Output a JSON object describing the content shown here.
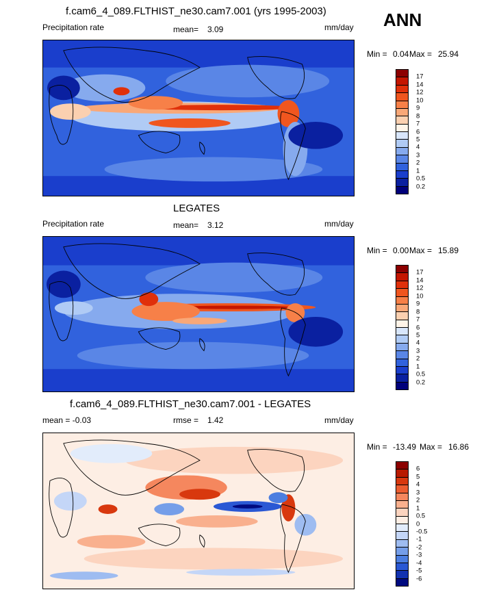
{
  "season": "ANN",
  "panels": [
    {
      "title": "f.cam6_4_089.FLTHIST_ne30.cam7.001 (yrs 1995-2003)",
      "left_label": "Precipitation rate",
      "mid_prefix": "mean=",
      "mid_value": "3.09",
      "units": "mm/day",
      "min_label": "Min =",
      "min_value": "0.04",
      "max_label": "Max =",
      "max_value": "25.94",
      "colorbar_labels": [
        "17",
        "14",
        "12",
        "10",
        "9",
        "8",
        "7",
        "6",
        "5",
        "4",
        "3",
        "2",
        "1",
        "0.5",
        "0.2"
      ],
      "colors": [
        "#8c0000",
        "#c41600",
        "#e0300a",
        "#f0561f",
        "#f78048",
        "#f9a878",
        "#fbd0b0",
        "#fff4e8",
        "#d8e6fb",
        "#b0cbf5",
        "#86aaee",
        "#5a86e6",
        "#3162dd",
        "#1a3ecc",
        "#0a20a0",
        "#00007a"
      ],
      "scheme": "precip-model"
    },
    {
      "title": "LEGATES",
      "left_label": "Precipitation rate",
      "mid_prefix": "mean=",
      "mid_value": "3.12",
      "units": "mm/day",
      "min_label": "Min =",
      "min_value": "0.00",
      "max_label": "Max =",
      "max_value": "15.89",
      "colorbar_labels": [
        "17",
        "14",
        "12",
        "10",
        "9",
        "8",
        "7",
        "6",
        "5",
        "4",
        "3",
        "2",
        "1",
        "0.5",
        "0.2"
      ],
      "colors": [
        "#8c0000",
        "#c41600",
        "#e0300a",
        "#f0561f",
        "#f78048",
        "#f9a878",
        "#fbd0b0",
        "#fff4e8",
        "#d8e6fb",
        "#b0cbf5",
        "#86aaee",
        "#5a86e6",
        "#3162dd",
        "#1a3ecc",
        "#0a20a0",
        "#00007a"
      ],
      "scheme": "precip-obs"
    },
    {
      "title": "f.cam6_4_089.FLTHIST_ne30.cam7.001 - LEGATES",
      "left_label": "mean =  -0.03",
      "mid_prefix": "rmse =",
      "mid_value": "1.42",
      "units": "mm/day",
      "min_label": "Min =",
      "min_value": "-13.49",
      "max_label": "Max =",
      "max_value": "16.86",
      "colorbar_labels": [
        "6",
        "5",
        "4",
        "3",
        "2",
        "1",
        "0.5",
        "0",
        "-0.5",
        "-1",
        "-2",
        "-3",
        "-4",
        "-5",
        "-6"
      ],
      "colors": [
        "#8c0000",
        "#b81a00",
        "#d8380e",
        "#ec5d30",
        "#f5875e",
        "#f9b08e",
        "#fcd4bf",
        "#fdeee4",
        "#e2ecfb",
        "#c4d6f7",
        "#9ebcf1",
        "#759ee9",
        "#4c7ee0",
        "#2a58d4",
        "#1232b0",
        "#000a80"
      ],
      "scheme": "difference"
    }
  ]
}
